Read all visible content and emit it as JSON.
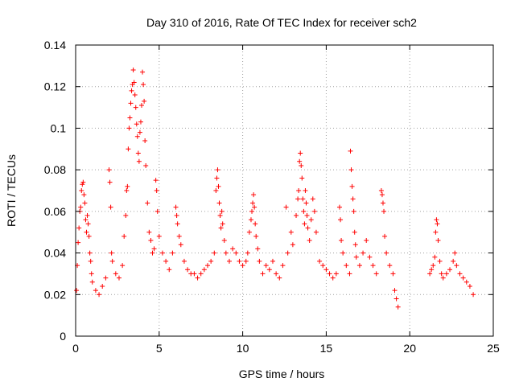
{
  "chart_data": {
    "type": "scatter",
    "title": "Day 310 of 2016, Rate Of TEC Index for receiver sch2",
    "xlabel": "GPS time / hours",
    "ylabel": "ROTI / TECUs",
    "xlim": [
      0,
      25
    ],
    "ylim": [
      0,
      0.14
    ],
    "xticks": [
      "0",
      "5",
      "10",
      "15",
      "20",
      "25"
    ],
    "yticks": [
      "0",
      "0.02",
      "0.04",
      "0.06",
      "0.08",
      "0.1",
      "0.12",
      "0.14"
    ],
    "grid": true,
    "marker": "plus",
    "color": "#ff0000",
    "series": [
      {
        "values_note_free": true,
        "points": [
          [
            0.05,
            0.022
          ],
          [
            0.1,
            0.034
          ],
          [
            0.15,
            0.045
          ],
          [
            0.2,
            0.052
          ],
          [
            0.25,
            0.06
          ],
          [
            0.3,
            0.062
          ],
          [
            0.35,
            0.07
          ],
          [
            0.4,
            0.073
          ],
          [
            0.45,
            0.074
          ],
          [
            0.5,
            0.068
          ],
          [
            0.55,
            0.064
          ],
          [
            0.6,
            0.056
          ],
          [
            0.65,
            0.05
          ],
          [
            0.7,
            0.058
          ],
          [
            0.75,
            0.054
          ],
          [
            0.8,
            0.048
          ],
          [
            0.85,
            0.04
          ],
          [
            0.9,
            0.036
          ],
          [
            0.95,
            0.03
          ],
          [
            1.0,
            0.026
          ],
          [
            1.2,
            0.022
          ],
          [
            1.4,
            0.02
          ],
          [
            1.6,
            0.024
          ],
          [
            1.8,
            0.028
          ],
          [
            2.0,
            0.08
          ],
          [
            2.05,
            0.074
          ],
          [
            2.1,
            0.062
          ],
          [
            2.15,
            0.04
          ],
          [
            2.2,
            0.036
          ],
          [
            2.4,
            0.03
          ],
          [
            2.6,
            0.028
          ],
          [
            2.8,
            0.034
          ],
          [
            2.9,
            0.048
          ],
          [
            3.0,
            0.058
          ],
          [
            3.05,
            0.07
          ],
          [
            3.1,
            0.072
          ],
          [
            3.15,
            0.09
          ],
          [
            3.2,
            0.1
          ],
          [
            3.25,
            0.105
          ],
          [
            3.3,
            0.112
          ],
          [
            3.35,
            0.118
          ],
          [
            3.4,
            0.121
          ],
          [
            3.45,
            0.128
          ],
          [
            3.5,
            0.122
          ],
          [
            3.55,
            0.116
          ],
          [
            3.6,
            0.11
          ],
          [
            3.65,
            0.102
          ],
          [
            3.7,
            0.096
          ],
          [
            3.75,
            0.088
          ],
          [
            3.8,
            0.084
          ],
          [
            3.85,
            0.098
          ],
          [
            3.9,
            0.103
          ],
          [
            3.95,
            0.111
          ],
          [
            4.0,
            0.127
          ],
          [
            4.05,
            0.121
          ],
          [
            4.1,
            0.113
          ],
          [
            4.15,
            0.094
          ],
          [
            4.2,
            0.082
          ],
          [
            4.3,
            0.064
          ],
          [
            4.4,
            0.05
          ],
          [
            4.5,
            0.046
          ],
          [
            4.6,
            0.04
          ],
          [
            4.7,
            0.042
          ],
          [
            4.8,
            0.075
          ],
          [
            4.85,
            0.07
          ],
          [
            4.9,
            0.06
          ],
          [
            5.0,
            0.048
          ],
          [
            5.2,
            0.04
          ],
          [
            5.4,
            0.036
          ],
          [
            5.6,
            0.032
          ],
          [
            5.8,
            0.04
          ],
          [
            6.0,
            0.062
          ],
          [
            6.05,
            0.058
          ],
          [
            6.1,
            0.054
          ],
          [
            6.2,
            0.048
          ],
          [
            6.3,
            0.044
          ],
          [
            6.5,
            0.036
          ],
          [
            6.7,
            0.032
          ],
          [
            6.9,
            0.03
          ],
          [
            7.1,
            0.03
          ],
          [
            7.3,
            0.028
          ],
          [
            7.5,
            0.03
          ],
          [
            7.7,
            0.032
          ],
          [
            7.9,
            0.034
          ],
          [
            8.1,
            0.036
          ],
          [
            8.3,
            0.04
          ],
          [
            8.4,
            0.07
          ],
          [
            8.45,
            0.076
          ],
          [
            8.5,
            0.08
          ],
          [
            8.55,
            0.072
          ],
          [
            8.6,
            0.064
          ],
          [
            8.65,
            0.058
          ],
          [
            8.7,
            0.052
          ],
          [
            8.75,
            0.06
          ],
          [
            8.8,
            0.054
          ],
          [
            8.9,
            0.046
          ],
          [
            9.0,
            0.04
          ],
          [
            9.2,
            0.036
          ],
          [
            9.4,
            0.042
          ],
          [
            9.6,
            0.04
          ],
          [
            9.8,
            0.036
          ],
          [
            10.0,
            0.034
          ],
          [
            10.2,
            0.036
          ],
          [
            10.3,
            0.04
          ],
          [
            10.4,
            0.05
          ],
          [
            10.5,
            0.056
          ],
          [
            10.55,
            0.06
          ],
          [
            10.6,
            0.064
          ],
          [
            10.65,
            0.068
          ],
          [
            10.7,
            0.062
          ],
          [
            10.75,
            0.054
          ],
          [
            10.8,
            0.048
          ],
          [
            10.9,
            0.042
          ],
          [
            11.0,
            0.036
          ],
          [
            11.2,
            0.03
          ],
          [
            11.4,
            0.034
          ],
          [
            11.6,
            0.032
          ],
          [
            11.8,
            0.036
          ],
          [
            12.0,
            0.03
          ],
          [
            12.2,
            0.028
          ],
          [
            12.4,
            0.034
          ],
          [
            12.6,
            0.062
          ],
          [
            12.7,
            0.04
          ],
          [
            12.9,
            0.05
          ],
          [
            13.0,
            0.044
          ],
          [
            13.2,
            0.058
          ],
          [
            13.3,
            0.066
          ],
          [
            13.35,
            0.07
          ],
          [
            13.4,
            0.084
          ],
          [
            13.45,
            0.088
          ],
          [
            13.5,
            0.082
          ],
          [
            13.55,
            0.076
          ],
          [
            13.6,
            0.066
          ],
          [
            13.65,
            0.06
          ],
          [
            13.7,
            0.054
          ],
          [
            13.75,
            0.07
          ],
          [
            13.8,
            0.064
          ],
          [
            13.85,
            0.058
          ],
          [
            13.9,
            0.052
          ],
          [
            14.0,
            0.046
          ],
          [
            14.1,
            0.056
          ],
          [
            14.2,
            0.066
          ],
          [
            14.3,
            0.06
          ],
          [
            14.4,
            0.05
          ],
          [
            14.6,
            0.036
          ],
          [
            14.8,
            0.034
          ],
          [
            15.0,
            0.032
          ],
          [
            15.2,
            0.03
          ],
          [
            15.4,
            0.028
          ],
          [
            15.6,
            0.03
          ],
          [
            15.8,
            0.062
          ],
          [
            15.85,
            0.056
          ],
          [
            15.9,
            0.046
          ],
          [
            16.0,
            0.04
          ],
          [
            16.2,
            0.034
          ],
          [
            16.4,
            0.03
          ],
          [
            16.45,
            0.089
          ],
          [
            16.5,
            0.08
          ],
          [
            16.55,
            0.072
          ],
          [
            16.6,
            0.066
          ],
          [
            16.65,
            0.06
          ],
          [
            16.7,
            0.05
          ],
          [
            16.75,
            0.044
          ],
          [
            16.8,
            0.038
          ],
          [
            17.0,
            0.034
          ],
          [
            17.2,
            0.04
          ],
          [
            17.4,
            0.046
          ],
          [
            17.6,
            0.038
          ],
          [
            17.8,
            0.034
          ],
          [
            18.0,
            0.03
          ],
          [
            18.3,
            0.07
          ],
          [
            18.35,
            0.068
          ],
          [
            18.4,
            0.064
          ],
          [
            18.45,
            0.06
          ],
          [
            18.5,
            0.048
          ],
          [
            18.6,
            0.04
          ],
          [
            18.8,
            0.034
          ],
          [
            19.0,
            0.03
          ],
          [
            19.1,
            0.022
          ],
          [
            19.2,
            0.018
          ],
          [
            19.3,
            0.014
          ],
          [
            21.2,
            0.03
          ],
          [
            21.3,
            0.032
          ],
          [
            21.4,
            0.034
          ],
          [
            21.5,
            0.038
          ],
          [
            21.55,
            0.05
          ],
          [
            21.6,
            0.056
          ],
          [
            21.65,
            0.054
          ],
          [
            21.7,
            0.046
          ],
          [
            21.8,
            0.036
          ],
          [
            21.9,
            0.03
          ],
          [
            22.0,
            0.028
          ],
          [
            22.2,
            0.03
          ],
          [
            22.4,
            0.032
          ],
          [
            22.6,
            0.036
          ],
          [
            22.7,
            0.04
          ],
          [
            22.8,
            0.034
          ],
          [
            23.0,
            0.03
          ],
          [
            23.2,
            0.028
          ],
          [
            23.4,
            0.026
          ],
          [
            23.6,
            0.024
          ],
          [
            23.8,
            0.02
          ]
        ]
      }
    ]
  }
}
